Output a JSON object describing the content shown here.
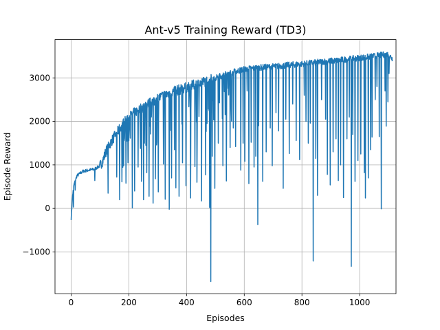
{
  "chart_data": {
    "type": "line",
    "title": "Ant-v5 Training Reward (TD3)",
    "xlabel": "Episodes",
    "ylabel": "Episode Reward",
    "xlim": [
      -56,
      1126
    ],
    "ylim": [
      -1960,
      3880
    ],
    "xticks": [
      0,
      200,
      400,
      600,
      800,
      1000
    ],
    "xtick_labels": [
      "0",
      "200",
      "400",
      "600",
      "800",
      "1000"
    ],
    "yticks": [
      -1000,
      0,
      1000,
      2000,
      3000
    ],
    "ytick_labels": [
      "−1000",
      "0",
      "1000",
      "2000",
      "3000"
    ],
    "grid": true,
    "series": [
      {
        "name": "Episode Reward",
        "color": "#1f77b4",
        "trend": [
          [
            0,
            -230
          ],
          [
            5,
            300
          ],
          [
            10,
            550
          ],
          [
            20,
            750
          ],
          [
            40,
            850
          ],
          [
            60,
            880
          ],
          [
            80,
            900
          ],
          [
            100,
            980
          ],
          [
            110,
            1100
          ],
          [
            120,
            1300
          ],
          [
            140,
            1550
          ],
          [
            160,
            1750
          ],
          [
            180,
            1950
          ],
          [
            200,
            2100
          ],
          [
            240,
            2300
          ],
          [
            280,
            2450
          ],
          [
            320,
            2600
          ],
          [
            360,
            2700
          ],
          [
            400,
            2780
          ],
          [
            440,
            2870
          ],
          [
            480,
            2950
          ],
          [
            520,
            3050
          ],
          [
            560,
            3130
          ],
          [
            600,
            3200
          ],
          [
            640,
            3230
          ],
          [
            680,
            3250
          ],
          [
            720,
            3270
          ],
          [
            760,
            3300
          ],
          [
            800,
            3320
          ],
          [
            840,
            3350
          ],
          [
            880,
            3380
          ],
          [
            920,
            3400
          ],
          [
            960,
            3430
          ],
          [
            1000,
            3460
          ],
          [
            1040,
            3490
          ],
          [
            1080,
            3530
          ],
          [
            1100,
            3540
          ],
          [
            1113,
            3440
          ]
        ],
        "dips": [
          [
            8,
            30
          ],
          [
            14,
            420
          ],
          [
            82,
            640
          ],
          [
            128,
            350
          ],
          [
            158,
            720
          ],
          [
            168,
            200
          ],
          [
            176,
            610
          ],
          [
            190,
            580
          ],
          [
            197,
            1050
          ],
          [
            212,
            10
          ],
          [
            220,
            400
          ],
          [
            232,
            950
          ],
          [
            244,
            620
          ],
          [
            251,
            200
          ],
          [
            262,
            820
          ],
          [
            270,
            280
          ],
          [
            284,
            120
          ],
          [
            292,
            680
          ],
          [
            302,
            380
          ],
          [
            320,
            1020
          ],
          [
            326,
            210
          ],
          [
            340,
            -20
          ],
          [
            348,
            700
          ],
          [
            358,
            1350
          ],
          [
            363,
            470
          ],
          [
            374,
            280
          ],
          [
            386,
            1050
          ],
          [
            398,
            520
          ],
          [
            414,
            240
          ],
          [
            429,
            960
          ],
          [
            436,
            600
          ],
          [
            452,
            170
          ],
          [
            466,
            770
          ],
          [
            480,
            20
          ],
          [
            484,
            -1680
          ],
          [
            489,
            1200
          ],
          [
            498,
            460
          ],
          [
            510,
            1500
          ],
          [
            526,
            980
          ],
          [
            538,
            630
          ],
          [
            551,
            1400
          ],
          [
            562,
            1850
          ],
          [
            570,
            1420
          ],
          [
            588,
            880
          ],
          [
            596,
            1500
          ],
          [
            602,
            1080
          ],
          [
            610,
            2700
          ],
          [
            616,
            570
          ],
          [
            624,
            1520
          ],
          [
            634,
            950
          ],
          [
            640,
            1200
          ],
          [
            647,
            -370
          ],
          [
            650,
            1900
          ],
          [
            664,
            620
          ],
          [
            676,
            1300
          ],
          [
            690,
            1850
          ],
          [
            697,
            980
          ],
          [
            710,
            2200
          ],
          [
            719,
            1780
          ],
          [
            735,
            460
          ],
          [
            744,
            2050
          ],
          [
            756,
            1260
          ],
          [
            768,
            2400
          ],
          [
            780,
            1560
          ],
          [
            792,
            1120
          ],
          [
            808,
            2600
          ],
          [
            814,
            2000
          ],
          [
            822,
            1500
          ],
          [
            829,
            1960
          ],
          [
            839,
            -1210
          ],
          [
            848,
            1150
          ],
          [
            854,
            300
          ],
          [
            868,
            2500
          ],
          [
            882,
            2050
          ],
          [
            888,
            780
          ],
          [
            898,
            540
          ],
          [
            908,
            1300
          ],
          [
            918,
            1600
          ],
          [
            926,
            640
          ],
          [
            934,
            1000
          ],
          [
            944,
            250
          ],
          [
            956,
            1600
          ],
          [
            964,
            2100
          ],
          [
            971,
            -1330
          ],
          [
            976,
            1700
          ],
          [
            984,
            620
          ],
          [
            994,
            1100
          ],
          [
            1004,
            1250
          ],
          [
            1016,
            820
          ],
          [
            1020,
            240
          ],
          [
            1030,
            700
          ],
          [
            1038,
            1350
          ],
          [
            1043,
            1640
          ],
          [
            1054,
            2500
          ],
          [
            1060,
            2800
          ],
          [
            1068,
            1650
          ],
          [
            1075,
            -10
          ],
          [
            1088,
            2700
          ],
          [
            1092,
            1890
          ],
          [
            1098,
            2450
          ],
          [
            1102,
            3100
          ]
        ]
      }
    ]
  }
}
